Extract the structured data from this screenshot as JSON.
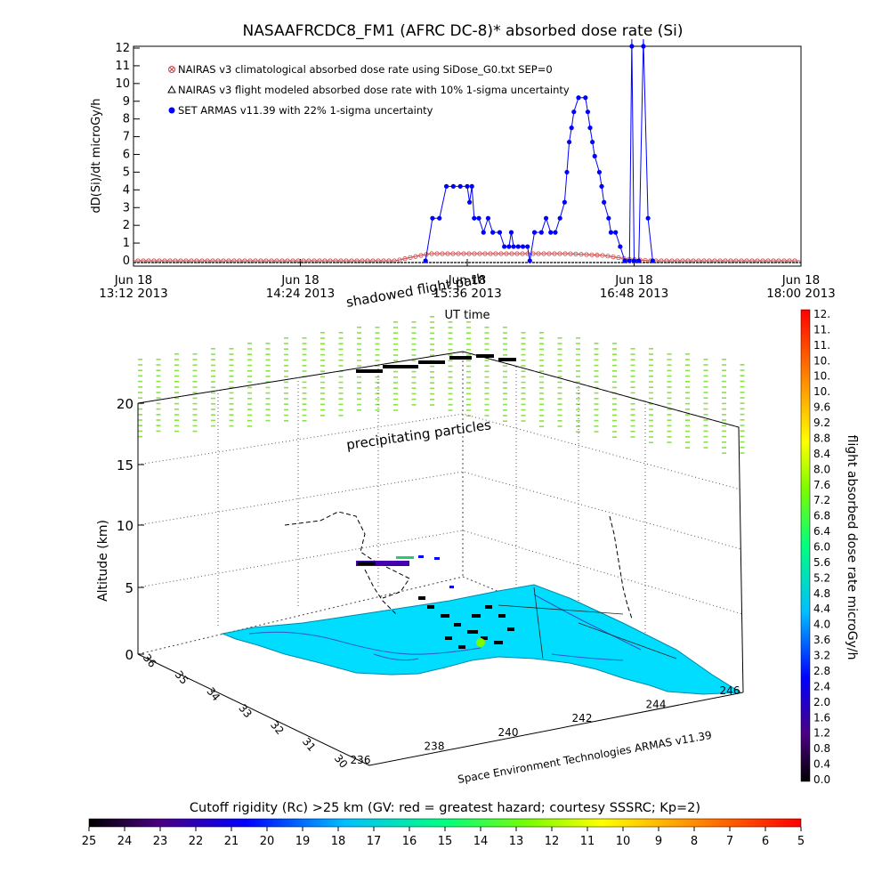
{
  "chart_data": [
    {
      "type": "line",
      "title": "NASAAFRCDC8_FM1 (AFRC DC-8)* absorbed dose rate (Si)",
      "xlabel": "UT time",
      "ylabel": "dD(Si)/dt microGy/h",
      "ylim": [
        0,
        12
      ],
      "yticks": [
        "0",
        "1",
        "2",
        "3",
        "4",
        "5",
        "6",
        "7",
        "8",
        "9",
        "10",
        "11",
        "12"
      ],
      "xlim": [
        "13:12",
        "18:00"
      ],
      "xticks": [
        {
          "t": "13:12",
          "line1": "Jun 18",
          "line2": "13:12 2013"
        },
        {
          "t": "14:24",
          "line1": "Jun 18",
          "line2": "14:24 2013"
        },
        {
          "t": "15:36",
          "line1": "Jun 18",
          "line2": "15:36 2013"
        },
        {
          "t": "16:48",
          "line1": "Jun 18",
          "line2": "16:48 2013"
        },
        {
          "t": "18:00",
          "line1": "Jun 18",
          "line2": "18:00 2013"
        }
      ],
      "legend_position": "top-left",
      "legend": [
        "NAIRAS v3 climatological absorbed dose rate using SiDose_G0.txt SEP=0",
        "NAIRAS v3 flight modeled absorbed dose rate with 10% 1-sigma uncertainty",
        "SET ARMAS v11.39 with 22% 1-sigma uncertainty"
      ],
      "series": [
        {
          "name": "NAIRAS v3 climatological absorbed dose rate using SiDose_G0.txt SEP=0",
          "color": "#cc4444",
          "marker": "x-circle",
          "points": [
            [
              "13:12",
              0
            ],
            [
              "14:40",
              0
            ],
            [
              "15:05",
              0
            ],
            [
              "15:12",
              0.2
            ],
            [
              "15:20",
              0.4
            ],
            [
              "15:40",
              0.4
            ],
            [
              "16:00",
              0.4
            ],
            [
              "16:20",
              0.4
            ],
            [
              "16:35",
              0.3
            ],
            [
              "16:45",
              0.1
            ],
            [
              "16:55",
              0
            ],
            [
              "18:00",
              0
            ]
          ]
        },
        {
          "name": "NAIRAS v3 flight modeled absorbed dose rate with 10% 1-sigma uncertainty",
          "color": "#000000",
          "marker": "triangle",
          "points": [
            [
              "13:12",
              0
            ],
            [
              "18:00",
              0
            ]
          ]
        },
        {
          "name": "SET ARMAS v11.39 with 22% 1-sigma uncertainty",
          "color": "#0000ff",
          "marker": "dot",
          "points": [
            [
              "15:18",
              0
            ],
            [
              "15:21",
              2.4
            ],
            [
              "15:24",
              2.4
            ],
            [
              "15:27",
              4.2
            ],
            [
              "15:30",
              4.2
            ],
            [
              "15:33",
              4.2
            ],
            [
              "15:36",
              4.2
            ],
            [
              "15:37",
              3.3
            ],
            [
              "15:38",
              4.2
            ],
            [
              "15:39",
              2.4
            ],
            [
              "15:41",
              2.4
            ],
            [
              "15:43",
              1.6
            ],
            [
              "15:45",
              2.4
            ],
            [
              "15:47",
              1.6
            ],
            [
              "15:50",
              1.6
            ],
            [
              "15:52",
              0.8
            ],
            [
              "15:54",
              0.8
            ],
            [
              "15:55",
              1.6
            ],
            [
              "15:56",
              0.8
            ],
            [
              "15:58",
              0.8
            ],
            [
              "16:00",
              0.8
            ],
            [
              "16:02",
              0.8
            ],
            [
              "16:03",
              0
            ],
            [
              "16:05",
              1.6
            ],
            [
              "16:08",
              1.6
            ],
            [
              "16:10",
              2.4
            ],
            [
              "16:12",
              1.6
            ],
            [
              "16:14",
              1.6
            ],
            [
              "16:16",
              2.4
            ],
            [
              "16:18",
              3.3
            ],
            [
              "16:19",
              5.0
            ],
            [
              "16:20",
              6.7
            ],
            [
              "16:21",
              7.5
            ],
            [
              "16:22",
              8.4
            ],
            [
              "16:24",
              9.2
            ],
            [
              "16:27",
              9.2
            ],
            [
              "16:28",
              8.4
            ],
            [
              "16:29",
              7.5
            ],
            [
              "16:30",
              6.7
            ],
            [
              "16:31",
              5.9
            ],
            [
              "16:33",
              5.0
            ],
            [
              "16:34",
              4.2
            ],
            [
              "16:35",
              3.3
            ],
            [
              "16:37",
              2.4
            ],
            [
              "16:38",
              1.6
            ],
            [
              "16:40",
              1.6
            ],
            [
              "16:42",
              0.8
            ],
            [
              "16:44",
              0
            ],
            [
              "16:46",
              0
            ],
            [
              "16:47",
              12.5
            ],
            [
              "16:48",
              0
            ],
            [
              "16:50",
              0
            ],
            [
              "16:52",
              12.5
            ],
            [
              "16:54",
              2.4
            ],
            [
              "16:56",
              0
            ]
          ]
        }
      ]
    },
    {
      "type": "scatter",
      "subtype": "3d-flight-track",
      "zlabel": "Altitude (km)",
      "zticks": [
        "0",
        "5",
        "10",
        "15",
        "20"
      ],
      "lat_ticks": [
        "30",
        "31",
        "32",
        "33",
        "34",
        "35",
        "36"
      ],
      "lon_ticks": [
        "236",
        "238",
        "240",
        "242",
        "244",
        "246"
      ],
      "annotations": [
        "shadowed flight path",
        "precipitating particles"
      ],
      "caption": "Space Environment Technologies ARMAS v11.39",
      "surface_color": "#00ddff"
    },
    {
      "type": "colorbar",
      "orientation": "vertical",
      "label": "flight absorbed dose rate microGy/h",
      "ticks": [
        "12.",
        "11.",
        "11.",
        "10.",
        "10.",
        "10.",
        "9.6",
        "9.2",
        "8.8",
        "8.4",
        "8.0",
        "7.6",
        "7.2",
        "6.8",
        "6.4",
        "6.0",
        "5.6",
        "5.2",
        "4.8",
        "4.4",
        "4.0",
        "3.6",
        "3.2",
        "2.8",
        "2.4",
        "2.0",
        "1.6",
        "1.2",
        "0.8",
        "0.4",
        "0.0"
      ]
    },
    {
      "type": "colorbar",
      "orientation": "horizontal",
      "title": "Cutoff rigidity (Rc) >25 km (GV: red = greatest hazard; courtesy SSSRC; Kp=2)",
      "ticks": [
        "25",
        "24",
        "23",
        "22",
        "21",
        "20",
        "19",
        "18",
        "17",
        "16",
        "15",
        "14",
        "13",
        "12",
        "11",
        "10",
        "9",
        "8",
        "7",
        "6",
        "5"
      ]
    }
  ]
}
